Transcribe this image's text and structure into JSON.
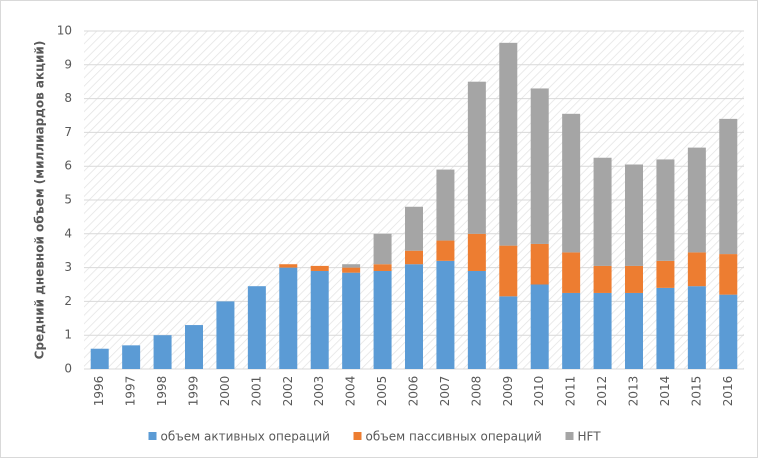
{
  "chart_data": {
    "type": "stacked_bar",
    "y_label": "Средний дневной объем (миллиардов акций)",
    "categories": [
      "1996",
      "1997",
      "1998",
      "1999",
      "2000",
      "2001",
      "2002",
      "2003",
      "2004",
      "2005",
      "2006",
      "2007",
      "2008",
      "2009",
      "2010",
      "2011",
      "2012",
      "2013",
      "2014",
      "2015",
      "2016"
    ],
    "series": [
      {
        "name": "объем активных операций",
        "color": "#5b9bd5",
        "values": [
          0.6,
          0.7,
          1.0,
          1.3,
          2.0,
          2.45,
          3.0,
          2.9,
          2.85,
          2.9,
          3.1,
          3.2,
          2.9,
          2.15,
          2.5,
          2.25,
          2.25,
          2.25,
          2.4,
          2.45,
          2.2
        ]
      },
      {
        "name": "объем пассивных операций",
        "color": "#ed7d31",
        "values": [
          0,
          0,
          0,
          0,
          0,
          0,
          0.1,
          0.15,
          0.15,
          0.2,
          0.4,
          0.6,
          1.1,
          1.5,
          1.2,
          1.2,
          0.8,
          0.8,
          0.8,
          1.0,
          1.2
        ]
      },
      {
        "name": "HFT",
        "color": "#a5a5a5",
        "values": [
          0,
          0,
          0,
          0,
          0,
          0,
          0,
          0,
          0.1,
          0.9,
          1.3,
          2.1,
          4.5,
          6.0,
          4.6,
          4.1,
          3.2,
          3.0,
          3.0,
          3.1,
          4.0
        ]
      }
    ],
    "ylim": [
      0,
      10
    ],
    "yticks": [
      0,
      1,
      2,
      3,
      4,
      5,
      6,
      7,
      8,
      9,
      10
    ],
    "grid": true,
    "legend": "bottom"
  }
}
